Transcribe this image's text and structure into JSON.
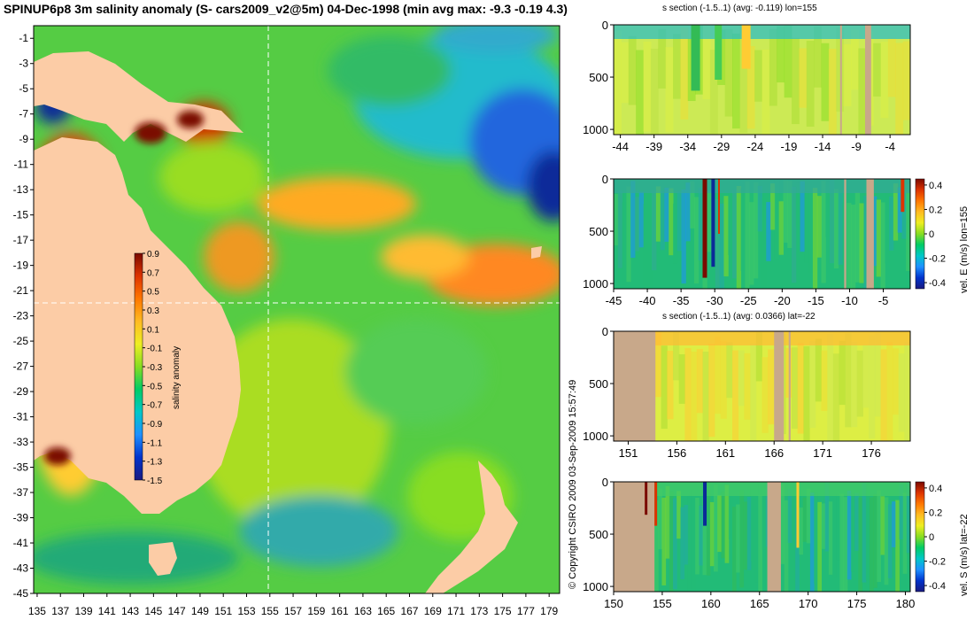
{
  "title": "SPINUP6p8 3m salinity anomaly (S- cars2009_v2@5m) 04-Dec-1998 (min avg max: -9.3 -0.19 4.3)",
  "copyright": "© Copyright CSIRO 2009   03-Sep-2009 15:57:49",
  "colors": {
    "land": "#fccca6",
    "section_land": "#c8a88a",
    "scale": [
      "#1a1a80",
      "#0033cc",
      "#1e90ff",
      "#00c8c8",
      "#00cc66",
      "#88dd22",
      "#eeee22",
      "#ffbb22",
      "#ff7700",
      "#dd3300",
      "#7a0a00"
    ]
  },
  "chart_data": [
    {
      "type": "heatmap",
      "title": "SPINUP6p8 3m salinity anomaly (S- cars2009_v2@5m) 04-Dec-1998",
      "xticks": [
        "135",
        "137",
        "139",
        "141",
        "143",
        "145",
        "147",
        "149",
        "151",
        "153",
        "155",
        "157",
        "159",
        "161",
        "163",
        "165",
        "167",
        "169",
        "171",
        "173",
        "175",
        "177",
        "179"
      ],
      "yticks": [
        "-1",
        "-3",
        "-5",
        "-7",
        "-9",
        "-11",
        "-13",
        "-15",
        "-17",
        "-19",
        "-21",
        "-23",
        "-25",
        "-27",
        "-29",
        "-31",
        "-33",
        "-35",
        "-37",
        "-39",
        "-41",
        "-43",
        "-45"
      ],
      "xlim": [
        134.7,
        179.9
      ],
      "ylim": [
        -45,
        0
      ],
      "colorbar_label": "salinity anomaly",
      "colorbar_ticks": [
        "0.9",
        "0.7",
        "0.5",
        "0.3",
        "0.1",
        "-0.1",
        "-0.3",
        "-0.5",
        "-0.7",
        "-0.9",
        "-1.1",
        "-1.3",
        "-1.5"
      ],
      "colorbar_range": [
        -1.5,
        0.9
      ],
      "section_lines": {
        "lon": 155,
        "lat": -22
      },
      "stats": {
        "min": -9.3,
        "avg": -0.19,
        "max": 4.3
      }
    },
    {
      "type": "heatmap",
      "title": "s section (-1.5..1) (avg: -0.119) lon=155",
      "xticks": [
        "-44",
        "-39",
        "-34",
        "-29",
        "-24",
        "-19",
        "-14",
        "-9",
        "-4"
      ],
      "xlim": [
        -45,
        -1
      ],
      "yticks": [
        "0",
        "500",
        "1000"
      ],
      "ylim": [
        1050,
        0
      ]
    },
    {
      "type": "heatmap",
      "title": "",
      "xticks": [
        "-45",
        "-40",
        "-35",
        "-30",
        "-25",
        "-20",
        "-15",
        "-10",
        "-5"
      ],
      "xlim": [
        -45,
        -1
      ],
      "yticks": [
        "0",
        "500",
        "1000"
      ],
      "ylim": [
        1050,
        0
      ],
      "colorbar_label": "vel. E (m/s) lon=155",
      "colorbar_ticks": [
        "0.4",
        "0.2",
        "0",
        "-0.2",
        "-0.4"
      ],
      "colorbar_range": [
        -0.45,
        0.45
      ]
    },
    {
      "type": "heatmap",
      "title": "s section (-1.5..1) (avg: 0.0366) lat=-22",
      "xticks": [
        "151",
        "156",
        "161",
        "166",
        "171",
        "176"
      ],
      "xlim": [
        149.5,
        180
      ],
      "yticks": [
        "0",
        "500",
        "1000"
      ],
      "ylim": [
        1050,
        0
      ]
    },
    {
      "type": "heatmap",
      "title": "",
      "xticks": [
        "150",
        "155",
        "160",
        "165",
        "170",
        "175",
        "180"
      ],
      "xlim": [
        150,
        180.5
      ],
      "yticks": [
        "0",
        "500",
        "1000"
      ],
      "ylim": [
        1050,
        0
      ],
      "colorbar_label": "vel. S (m/s) lat=-22",
      "colorbar_ticks": [
        "0.4",
        "0.2",
        "0",
        "-0.2",
        "-0.4"
      ],
      "colorbar_range": [
        -0.45,
        0.45
      ]
    }
  ]
}
